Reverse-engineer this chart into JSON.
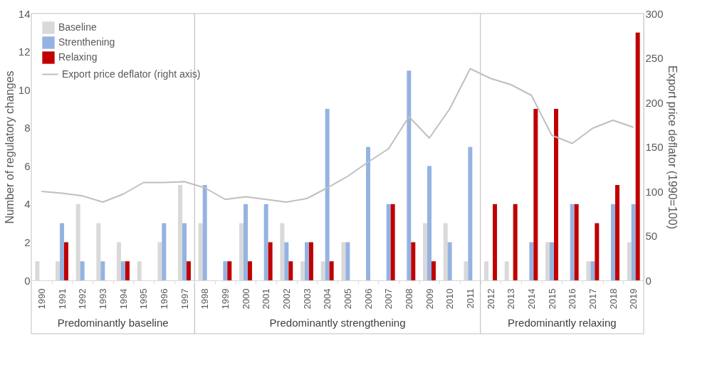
{
  "chart_data": {
    "type": "bar",
    "ylabel": "Number of regulatory changes",
    "y2label": "Export price deflator (1990=100)",
    "categories": [
      "1990",
      "1991",
      "1992",
      "1993",
      "1994",
      "1995",
      "1996",
      "1997",
      "1998",
      "1999",
      "2000",
      "2001",
      "2002",
      "2003",
      "2004",
      "2005",
      "2006",
      "2007",
      "2008",
      "2009",
      "2010",
      "2011",
      "2012",
      "2013",
      "2014",
      "2015",
      "2016",
      "2017",
      "2018",
      "2019"
    ],
    "series": [
      {
        "name": "Baseline",
        "color": "#d9d9d9",
        "values": [
          1,
          1,
          4,
          3,
          2,
          1,
          2,
          5,
          3,
          0,
          3,
          0,
          3,
          1,
          1,
          2,
          0,
          0,
          0,
          3,
          3,
          1,
          1,
          1,
          0,
          2,
          0,
          1,
          0,
          2
        ]
      },
      {
        "name": "Strenthening",
        "color": "#95b3e1",
        "values": [
          0,
          3,
          1,
          1,
          1,
          0,
          3,
          3,
          5,
          1,
          4,
          4,
          2,
          2,
          9,
          2,
          7,
          4,
          11,
          6,
          2,
          7,
          0,
          0,
          2,
          2,
          4,
          1,
          4,
          4
        ]
      },
      {
        "name": "Relaxing",
        "color": "#c00000",
        "values": [
          0,
          2,
          0,
          0,
          1,
          0,
          0,
          1,
          0,
          1,
          1,
          2,
          1,
          2,
          1,
          0,
          0,
          4,
          2,
          1,
          0,
          0,
          4,
          4,
          9,
          9,
          4,
          3,
          5,
          13
        ]
      },
      {
        "name": "Export price deflator (right axis)",
        "type": "line",
        "axis": "y2",
        "color": "#bfbfbf",
        "values": [
          100,
          98,
          95,
          88,
          97,
          110,
          110,
          111,
          104,
          91,
          94,
          91,
          88,
          92,
          104,
          117,
          133,
          148,
          184,
          160,
          193,
          238,
          227,
          220,
          208,
          163,
          154,
          171,
          180,
          172
        ]
      }
    ],
    "ylim": [
      0,
      14
    ],
    "yticks": [
      0,
      2,
      4,
      6,
      8,
      10,
      12,
      14
    ],
    "y2lim": [
      0,
      300
    ],
    "y2ticks": [
      0,
      50,
      100,
      150,
      200,
      250,
      300
    ],
    "grid": false,
    "legend": "top left",
    "bands": [
      {
        "axis": "x",
        "from": "1990",
        "to": "1997",
        "label": "Predominantly baseline"
      },
      {
        "axis": "x",
        "from": "1998",
        "to": "2011",
        "label": "Predominantly strengthening"
      },
      {
        "axis": "x",
        "from": "2012",
        "to": "2019",
        "label": "Predominantly relaxing"
      }
    ]
  }
}
